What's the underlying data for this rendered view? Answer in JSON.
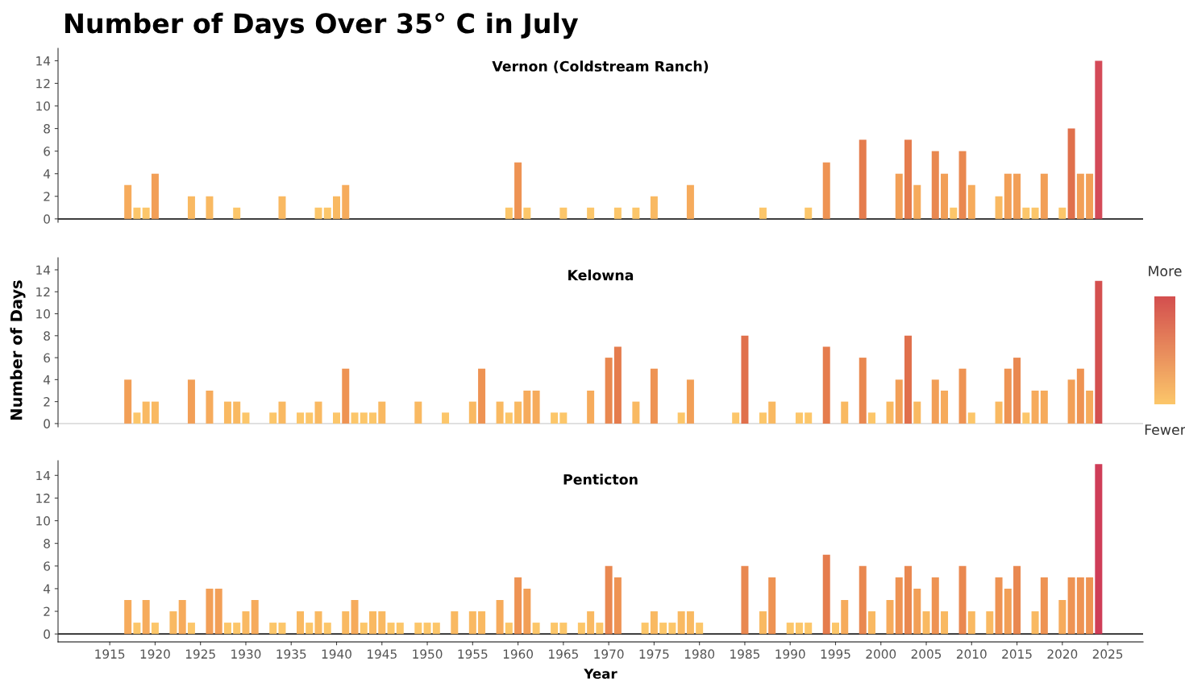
{
  "chart_data": [
    {
      "type": "bar",
      "title": "Number of Days Over 35° C in July",
      "subtitle": "Vernon (Coldstream Ranch)",
      "tick_labels": "y",
      "xlim": [
        1909.3,
        2028.9
      ],
      "ylim": [
        -0.3,
        15.1
      ],
      "yticks": [
        0,
        2,
        4,
        6,
        8,
        10,
        12,
        14
      ],
      "ref_lines": [
        {
          "axis": "y",
          "value": 0,
          "color": "#222222"
        }
      ],
      "x": [
        1917,
        1918,
        1919,
        1920,
        1924,
        1926,
        1929,
        1934,
        1938,
        1939,
        1940,
        1941,
        1959,
        1960,
        1961,
        1965,
        1968,
        1971,
        1973,
        1975,
        1979,
        1987,
        1992,
        1994,
        1998,
        2002,
        2003,
        2004,
        2006,
        2007,
        2008,
        2009,
        2010,
        2013,
        2014,
        2015,
        2016,
        2017,
        2018,
        2020,
        2021,
        2022,
        2023,
        2024
      ],
      "values": [
        3,
        1,
        1,
        4,
        2,
        2,
        1,
        2,
        1,
        1,
        2,
        3,
        1,
        5,
        1,
        1,
        1,
        1,
        1,
        2,
        3,
        1,
        1,
        5,
        7,
        4,
        7,
        3,
        6,
        4,
        1,
        6,
        3,
        2,
        4,
        4,
        1,
        1,
        4,
        1,
        8,
        4,
        4,
        14
      ],
      "colors": [
        "#f6ab5c",
        "#fcc66a",
        "#fcc66a",
        "#f29f57",
        "#f9b962",
        "#f9b962",
        "#fcc66a",
        "#f9b962",
        "#fcc66a",
        "#fcc66a",
        "#f9b962",
        "#f6ab5c",
        "#fcc66a",
        "#ee9353",
        "#fcc66a",
        "#fcc66a",
        "#fcc66a",
        "#fcc66a",
        "#fcc66a",
        "#f9b962",
        "#f6ab5c",
        "#fcc66a",
        "#fcc66a",
        "#ee9353",
        "#e57c4d",
        "#f29f57",
        "#e57c4d",
        "#f6ab5c",
        "#e98850",
        "#f29f57",
        "#fcc66a",
        "#e98850",
        "#f6ab5c",
        "#f9b962",
        "#f29f57",
        "#f29f57",
        "#fcc66a",
        "#fcc66a",
        "#f29f57",
        "#fcc66a",
        "#e0704c",
        "#f29f57",
        "#f29f57",
        "#d44a58"
      ]
    },
    {
      "type": "bar",
      "subtitle": "Kelowna",
      "ylabel": "Number of Days",
      "annotations": [
        "More",
        "Fewer"
      ],
      "tick_labels": "y",
      "xlim": [
        1909.3,
        2028.9
      ],
      "ylim": [
        -0.3,
        15.1
      ],
      "yticks": [
        0,
        2,
        4,
        6,
        8,
        10,
        12,
        14
      ],
      "ref_lines": [
        {
          "axis": "y",
          "value": 0,
          "color": "#dddddd"
        }
      ],
      "x": [
        1917,
        1918,
        1919,
        1920,
        1924,
        1926,
        1928,
        1929,
        1930,
        1933,
        1934,
        1936,
        1937,
        1938,
        1940,
        1941,
        1942,
        1943,
        1944,
        1945,
        1949,
        1952,
        1955,
        1956,
        1958,
        1959,
        1960,
        1961,
        1962,
        1964,
        1965,
        1968,
        1970,
        1971,
        1973,
        1975,
        1978,
        1979,
        1984,
        1985,
        1987,
        1988,
        1991,
        1992,
        1994,
        1996,
        1998,
        1999,
        2001,
        2002,
        2003,
        2004,
        2006,
        2007,
        2009,
        2010,
        2013,
        2014,
        2015,
        2016,
        2017,
        2018,
        2021,
        2022,
        2023,
        2024
      ],
      "values": [
        4,
        1,
        2,
        2,
        4,
        3,
        2,
        2,
        1,
        1,
        2,
        1,
        1,
        2,
        1,
        5,
        1,
        1,
        1,
        2,
        2,
        1,
        2,
        5,
        2,
        1,
        2,
        3,
        3,
        1,
        1,
        3,
        6,
        7,
        2,
        5,
        1,
        4,
        1,
        8,
        1,
        2,
        1,
        1,
        7,
        2,
        6,
        1,
        2,
        4,
        8,
        2,
        4,
        3,
        5,
        1,
        2,
        5,
        6,
        1,
        3,
        3,
        4,
        5,
        3,
        13
      ],
      "colors": [
        "#f29f57",
        "#fcc66a",
        "#f9b962",
        "#f9b962",
        "#f29f57",
        "#f6ab5c",
        "#f9b962",
        "#f9b962",
        "#fcc66a",
        "#fcc66a",
        "#f9b962",
        "#fcc66a",
        "#fcc66a",
        "#f9b962",
        "#fcc66a",
        "#ee9353",
        "#fcc66a",
        "#fcc66a",
        "#fcc66a",
        "#f9b962",
        "#f9b962",
        "#fcc66a",
        "#f9b962",
        "#ee9353",
        "#f9b962",
        "#fcc66a",
        "#f9b962",
        "#f6ab5c",
        "#f6ab5c",
        "#fcc66a",
        "#fcc66a",
        "#f6ab5c",
        "#e98850",
        "#e57c4d",
        "#f9b962",
        "#ee9353",
        "#fcc66a",
        "#f29f57",
        "#fcc66a",
        "#e0704c",
        "#fcc66a",
        "#f9b962",
        "#fcc66a",
        "#fcc66a",
        "#e57c4d",
        "#f9b962",
        "#e98850",
        "#fcc66a",
        "#f9b962",
        "#f29f57",
        "#e0704c",
        "#f9b962",
        "#f29f57",
        "#f6ab5c",
        "#ee9353",
        "#fcc66a",
        "#f9b962",
        "#ee9353",
        "#e98850",
        "#fcc66a",
        "#f6ab5c",
        "#f6ab5c",
        "#f29f57",
        "#ee9353",
        "#f6ab5c",
        "#d4504f"
      ]
    },
    {
      "type": "bar",
      "subtitle": "Penticton",
      "xlabel": "Year",
      "xlim": [
        1909.3,
        2028.9
      ],
      "ylim": [
        -0.7,
        15.3
      ],
      "yticks": [
        0,
        2,
        4,
        6,
        8,
        10,
        12,
        14
      ],
      "xticks": [
        1915,
        1920,
        1925,
        1930,
        1935,
        1940,
        1945,
        1950,
        1955,
        1960,
        1965,
        1970,
        1975,
        1980,
        1985,
        1990,
        1995,
        2000,
        2005,
        2010,
        2015,
        2020,
        2025
      ],
      "ref_lines": [
        {
          "axis": "y",
          "value": 0,
          "color": "#222222"
        }
      ],
      "x": [
        1917,
        1918,
        1919,
        1920,
        1922,
        1923,
        1924,
        1926,
        1927,
        1928,
        1929,
        1930,
        1931,
        1933,
        1934,
        1936,
        1937,
        1938,
        1939,
        1941,
        1942,
        1943,
        1944,
        1945,
        1946,
        1947,
        1949,
        1950,
        1951,
        1953,
        1955,
        1956,
        1958,
        1959,
        1960,
        1961,
        1962,
        1964,
        1965,
        1967,
        1968,
        1969,
        1970,
        1971,
        1974,
        1975,
        1976,
        1977,
        1978,
        1979,
        1980,
        1985,
        1987,
        1988,
        1990,
        1991,
        1992,
        1994,
        1995,
        1996,
        1998,
        1999,
        2001,
        2002,
        2003,
        2004,
        2005,
        2006,
        2007,
        2009,
        2010,
        2012,
        2013,
        2014,
        2015,
        2017,
        2018,
        2020,
        2021,
        2022,
        2023,
        2024
      ],
      "values": [
        3,
        1,
        3,
        1,
        2,
        3,
        1,
        4,
        4,
        1,
        1,
        2,
        3,
        1,
        1,
        2,
        1,
        2,
        1,
        2,
        3,
        1,
        2,
        2,
        1,
        1,
        1,
        1,
        1,
        2,
        2,
        2,
        3,
        1,
        5,
        4,
        1,
        1,
        1,
        1,
        2,
        1,
        6,
        5,
        1,
        2,
        1,
        1,
        2,
        2,
        1,
        6,
        2,
        5,
        1,
        1,
        1,
        7,
        1,
        3,
        6,
        2,
        3,
        5,
        6,
        4,
        2,
        5,
        2,
        6,
        2,
        2,
        5,
        4,
        6,
        2,
        5,
        3,
        5,
        5,
        5,
        15
      ],
      "colors": [
        "#f6ab5c",
        "#fcc66a",
        "#f6ab5c",
        "#fcc66a",
        "#f9b962",
        "#f6ab5c",
        "#fcc66a",
        "#f29f57",
        "#f29f57",
        "#fcc66a",
        "#fcc66a",
        "#f9b962",
        "#f6ab5c",
        "#fcc66a",
        "#fcc66a",
        "#f9b962",
        "#fcc66a",
        "#f9b962",
        "#fcc66a",
        "#f9b962",
        "#f6ab5c",
        "#fcc66a",
        "#f9b962",
        "#f9b962",
        "#fcc66a",
        "#fcc66a",
        "#fcc66a",
        "#fcc66a",
        "#fcc66a",
        "#f9b962",
        "#f9b962",
        "#f9b962",
        "#f6ab5c",
        "#fcc66a",
        "#ee9353",
        "#f29f57",
        "#fcc66a",
        "#fcc66a",
        "#fcc66a",
        "#fcc66a",
        "#f9b962",
        "#fcc66a",
        "#e98850",
        "#ee9353",
        "#fcc66a",
        "#f9b962",
        "#fcc66a",
        "#fcc66a",
        "#f9b962",
        "#f9b962",
        "#fcc66a",
        "#e98850",
        "#f9b962",
        "#ee9353",
        "#fcc66a",
        "#fcc66a",
        "#fcc66a",
        "#e57c4d",
        "#fcc66a",
        "#f6ab5c",
        "#e98850",
        "#f9b962",
        "#f6ab5c",
        "#ee9353",
        "#e98850",
        "#f29f57",
        "#f9b962",
        "#ee9353",
        "#f9b962",
        "#e98850",
        "#f9b962",
        "#f9b962",
        "#ee9353",
        "#f29f57",
        "#e98850",
        "#f9b962",
        "#ee9353",
        "#f6ab5c",
        "#ee9353",
        "#ee9353",
        "#ee9353",
        "#cf3d58"
      ]
    }
  ]
}
